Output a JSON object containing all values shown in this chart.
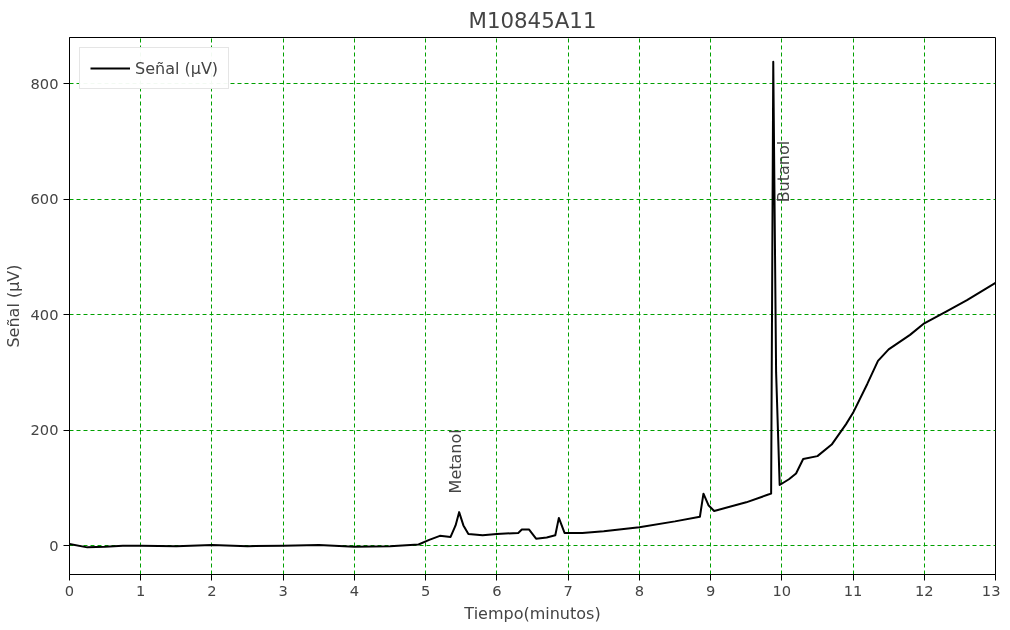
{
  "chart_data": {
    "type": "line",
    "title": "M10845A11",
    "xlabel": "Tiempo(minutos)",
    "ylabel": "Señal (µV)",
    "xlim": [
      0,
      13
    ],
    "xticks": [
      0,
      1,
      2,
      3,
      4,
      5,
      6,
      7,
      8,
      9,
      10,
      11,
      12,
      13
    ],
    "ylim": [
      -50,
      880
    ],
    "yticks": [
      0,
      200,
      400,
      600,
      800
    ],
    "grid": true,
    "legend": "top left",
    "line_style": "solid",
    "marker": "none",
    "annotations": [
      "Metanol",
      "Butanol"
    ],
    "series": [
      {
        "name": "Señal (µV)",
        "color": "#000000",
        "x": [
          0,
          0.25,
          0.5,
          0.75,
          1,
          1.5,
          2,
          2.5,
          3,
          3.5,
          4,
          4.5,
          4.9,
          5.05,
          5.2,
          5.35,
          5.42,
          5.47,
          5.53,
          5.6,
          5.8,
          6.0,
          6.3,
          6.35,
          6.45,
          6.55,
          6.7,
          6.82,
          6.87,
          6.95,
          7.2,
          7.5,
          8,
          8.5,
          8.85,
          8.9,
          8.97,
          9.05,
          9.5,
          9.8,
          9.85,
          9.88,
          9.92,
          9.97,
          10.1,
          10.2,
          10.3,
          10.5,
          10.7,
          10.9,
          11.0,
          11.2,
          11.35,
          11.5,
          11.8,
          12,
          12.3,
          12.6,
          13
        ],
        "values": [
          3,
          -3,
          -2,
          0,
          0,
          -1,
          1,
          -1,
          0,
          1,
          -2,
          -1,
          2,
          10,
          17,
          15,
          35,
          58,
          35,
          20,
          18,
          20,
          22,
          28,
          28,
          12,
          14,
          18,
          48,
          22,
          22,
          25,
          32,
          42,
          50,
          90,
          70,
          60,
          75,
          88,
          90,
          838,
          300,
          105,
          115,
          125,
          150,
          155,
          175,
          210,
          230,
          280,
          320,
          340,
          365,
          385,
          405,
          425,
          455
        ]
      }
    ]
  }
}
